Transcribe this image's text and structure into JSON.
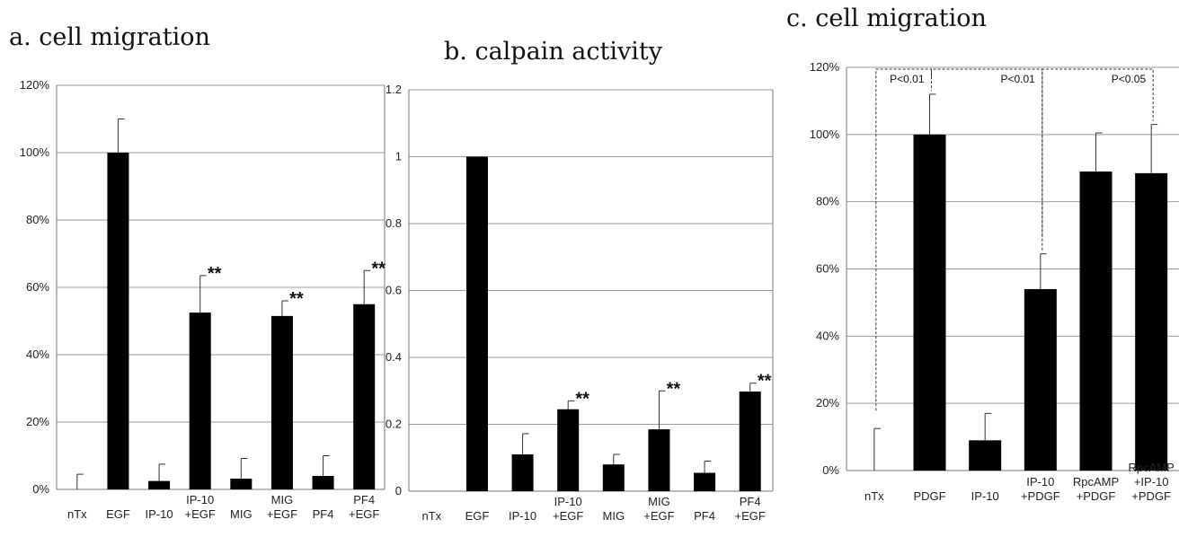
{
  "chart_data": [
    {
      "type": "bar",
      "title": "a. cell migration",
      "categories": [
        "nTx",
        "EGF",
        "IP-10",
        "IP-10\n+EGF",
        "MIG",
        "MIG\n+EGF",
        "PF4",
        "PF4\n+EGF"
      ],
      "values": [
        0,
        100,
        2.5,
        52.5,
        3.2,
        51.5,
        4,
        55
      ],
      "errors": [
        4.5,
        10,
        5,
        11,
        6,
        4.5,
        6,
        10
      ],
      "significance": [
        "",
        "",
        "",
        "**",
        "",
        "**",
        "",
        "**"
      ],
      "yticks": [
        "0%",
        "20%",
        "40%",
        "60%",
        "80%",
        "100%",
        "120%"
      ],
      "ylim": [
        0,
        120
      ],
      "grid": true,
      "bar_color": "#000000"
    },
    {
      "type": "bar",
      "title": "b. calpain activity",
      "categories": [
        "nTx",
        "EGF",
        "IP-10",
        "IP-10\n+EGF",
        "MIG",
        "MIG\n+EGF",
        "PF4",
        "PF4\n+EGF"
      ],
      "values": [
        0,
        1.0,
        0.11,
        0.245,
        0.08,
        0.185,
        0.055,
        0.298
      ],
      "errors": [
        0,
        0,
        0.062,
        0.025,
        0.03,
        0.115,
        0.035,
        0.025
      ],
      "significance": [
        "",
        "",
        "",
        "**",
        "",
        "**",
        "",
        "**"
      ],
      "yticks": [
        "0",
        "0.2",
        "0.4",
        "0.6",
        "0.8",
        "1",
        "1.2"
      ],
      "ylim": [
        0,
        1.2
      ],
      "grid": true,
      "bar_color": "#000000"
    },
    {
      "type": "bar",
      "title": "c. cell migration",
      "categories": [
        "nTx",
        "PDGF",
        "IP-10",
        "IP-10\n+PDGF",
        "RpcAMP\n+PDGF",
        "RpcAMP\n+IP-10\n+PDGF"
      ],
      "values": [
        0,
        100,
        9,
        54,
        89,
        88.5
      ],
      "errors": [
        12.5,
        12,
        8,
        10.5,
        11.5,
        14.5
      ],
      "yticks": [
        "0%",
        "20%",
        "40%",
        "60%",
        "80%",
        "100%",
        "120%"
      ],
      "ylim": [
        0,
        120
      ],
      "grid": true,
      "bar_color": "#000000",
      "comparisons": [
        {
          "label": "P<0.01",
          "from": 0,
          "to": 1
        },
        {
          "label": "P<0.01",
          "from": 1,
          "to": 3
        },
        {
          "label": "P<0.05",
          "from": 3,
          "to": 5
        }
      ]
    }
  ]
}
